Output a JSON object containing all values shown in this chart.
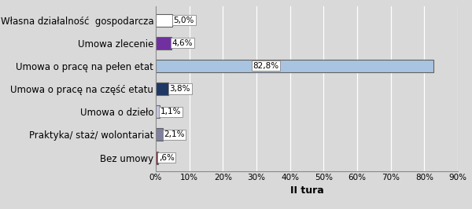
{
  "categories": [
    "Własna działalność  gospodarcza",
    "Umowa zlecenie",
    "Umowa o pracę na pełen etat",
    "Umowa o pracę na część etatu",
    "Umowa o dzieło",
    "Praktyka/ staż/ wolontariat",
    "Bez umowy"
  ],
  "values": [
    5.0,
    4.6,
    82.8,
    3.8,
    1.1,
    2.1,
    0.6
  ],
  "bar_colors": [
    "#ffffff",
    "#7030a0",
    "#a8c4e0",
    "#1f3864",
    "#c8c8e0",
    "#8080a0",
    "#8b1a2e"
  ],
  "bar_edge_colors": [
    "#606060",
    "#606060",
    "#606060",
    "#606060",
    "#606060",
    "#606060",
    "#606060"
  ],
  "labels": [
    "5,0%",
    "4,6%",
    "82,8%",
    "3,8%",
    "1,1%",
    "2,1%",
    ",6%"
  ],
  "label_inside": [
    false,
    false,
    true,
    false,
    false,
    false,
    false
  ],
  "xlabel": "II tura",
  "xlim": [
    0,
    90
  ],
  "xticks": [
    0,
    10,
    20,
    30,
    40,
    50,
    60,
    70,
    80,
    90
  ],
  "xtick_labels": [
    "0%",
    "10%",
    "20%",
    "30%",
    "40%",
    "50%",
    "60%",
    "70%",
    "80%",
    "90%"
  ],
  "background_color": "#d9d9d9",
  "plot_bg_color": "#d9d9d9",
  "bar_height": 0.55,
  "annotation_fontsize": 7.5,
  "xlabel_fontsize": 9,
  "ylabel_fontsize": 8.5
}
